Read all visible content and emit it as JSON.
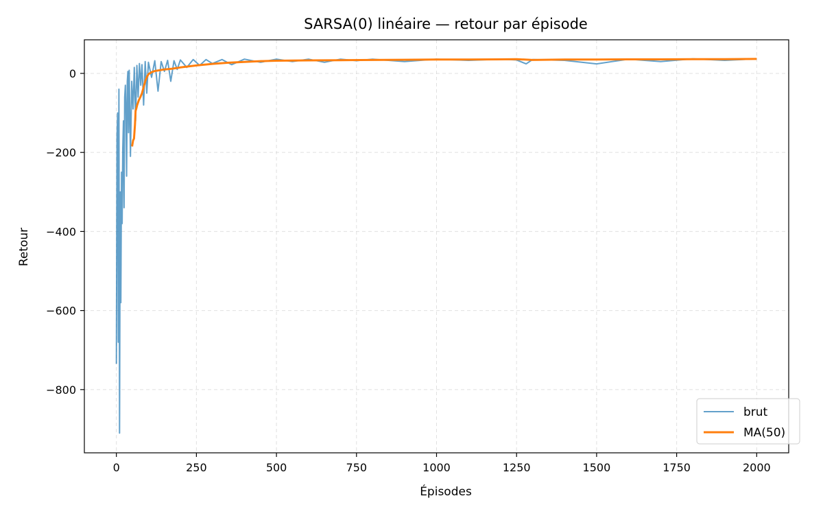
{
  "chart_data": {
    "type": "line",
    "title": "SARSA(0) linéaire — retour par épisode",
    "xlabel": "Épisodes",
    "ylabel": "Retour",
    "xlim": [
      -100,
      2100
    ],
    "ylim": [
      -960,
      85
    ],
    "x_ticks": [
      0,
      250,
      500,
      750,
      1000,
      1250,
      1500,
      1750,
      2000
    ],
    "y_ticks": [
      0,
      -200,
      -400,
      -600,
      -800
    ],
    "x_tick_labels": [
      "0",
      "250",
      "500",
      "750",
      "1000",
      "1250",
      "1500",
      "1750",
      "2000"
    ],
    "y_tick_labels": [
      "0",
      "−200",
      "−400",
      "−600",
      "−800"
    ],
    "grid": true,
    "legend_position": "bottom-right",
    "series": [
      {
        "name": "brut",
        "color": "#1f77b4",
        "opacity": 0.7,
        "x": [
          0,
          2,
          4,
          6,
          8,
          10,
          12,
          14,
          16,
          18,
          20,
          22,
          24,
          26,
          28,
          30,
          32,
          34,
          36,
          38,
          40,
          44,
          48,
          52,
          56,
          60,
          64,
          68,
          72,
          76,
          80,
          85,
          90,
          95,
          100,
          110,
          120,
          130,
          140,
          150,
          160,
          170,
          180,
          190,
          200,
          220,
          240,
          260,
          280,
          300,
          330,
          360,
          400,
          450,
          500,
          550,
          600,
          650,
          700,
          750,
          800,
          900,
          1000,
          1100,
          1200,
          1250,
          1280,
          1300,
          1400,
          1500,
          1600,
          1700,
          1800,
          1900,
          2000
        ],
        "values": [
          -735,
          -160,
          -100,
          -680,
          -40,
          -910,
          -300,
          -580,
          -250,
          -380,
          -190,
          -120,
          -340,
          -60,
          -30,
          -100,
          -260,
          -20,
          5,
          -150,
          8,
          -210,
          -20,
          -90,
          15,
          -120,
          20,
          -60,
          25,
          -30,
          22,
          -80,
          30,
          -50,
          28,
          -10,
          32,
          -45,
          30,
          5,
          33,
          -20,
          32,
          10,
          34,
          15,
          35,
          20,
          35,
          25,
          35,
          22,
          36,
          28,
          36,
          30,
          36,
          28,
          36,
          32,
          36,
          30,
          36,
          33,
          36,
          34,
          24,
          35,
          33,
          24,
          36,
          30,
          37,
          33,
          37
        ]
      },
      {
        "name": "MA(50)",
        "color": "#ff7f0e",
        "opacity": 1,
        "x": [
          49,
          52,
          55,
          58,
          60,
          62,
          65,
          70,
          75,
          80,
          85,
          90,
          95,
          100,
          110,
          120,
          135,
          150,
          175,
          200,
          250,
          300,
          350,
          400,
          450,
          500,
          600,
          700,
          800,
          900,
          1000,
          1100,
          1200,
          1250,
          1300,
          1400,
          1500,
          1600,
          1700,
          1800,
          1900,
          2000
        ],
        "values": [
          -185,
          -170,
          -165,
          -130,
          -95,
          -90,
          -80,
          -68,
          -60,
          -50,
          -35,
          -20,
          -10,
          -2,
          3,
          6,
          8,
          10,
          12,
          15,
          20,
          24,
          27,
          29,
          31,
          32,
          33,
          33.5,
          34,
          34.5,
          35,
          35,
          35.5,
          36,
          34,
          35,
          35,
          35.5,
          35.5,
          36,
          36,
          36.5
        ]
      }
    ]
  }
}
